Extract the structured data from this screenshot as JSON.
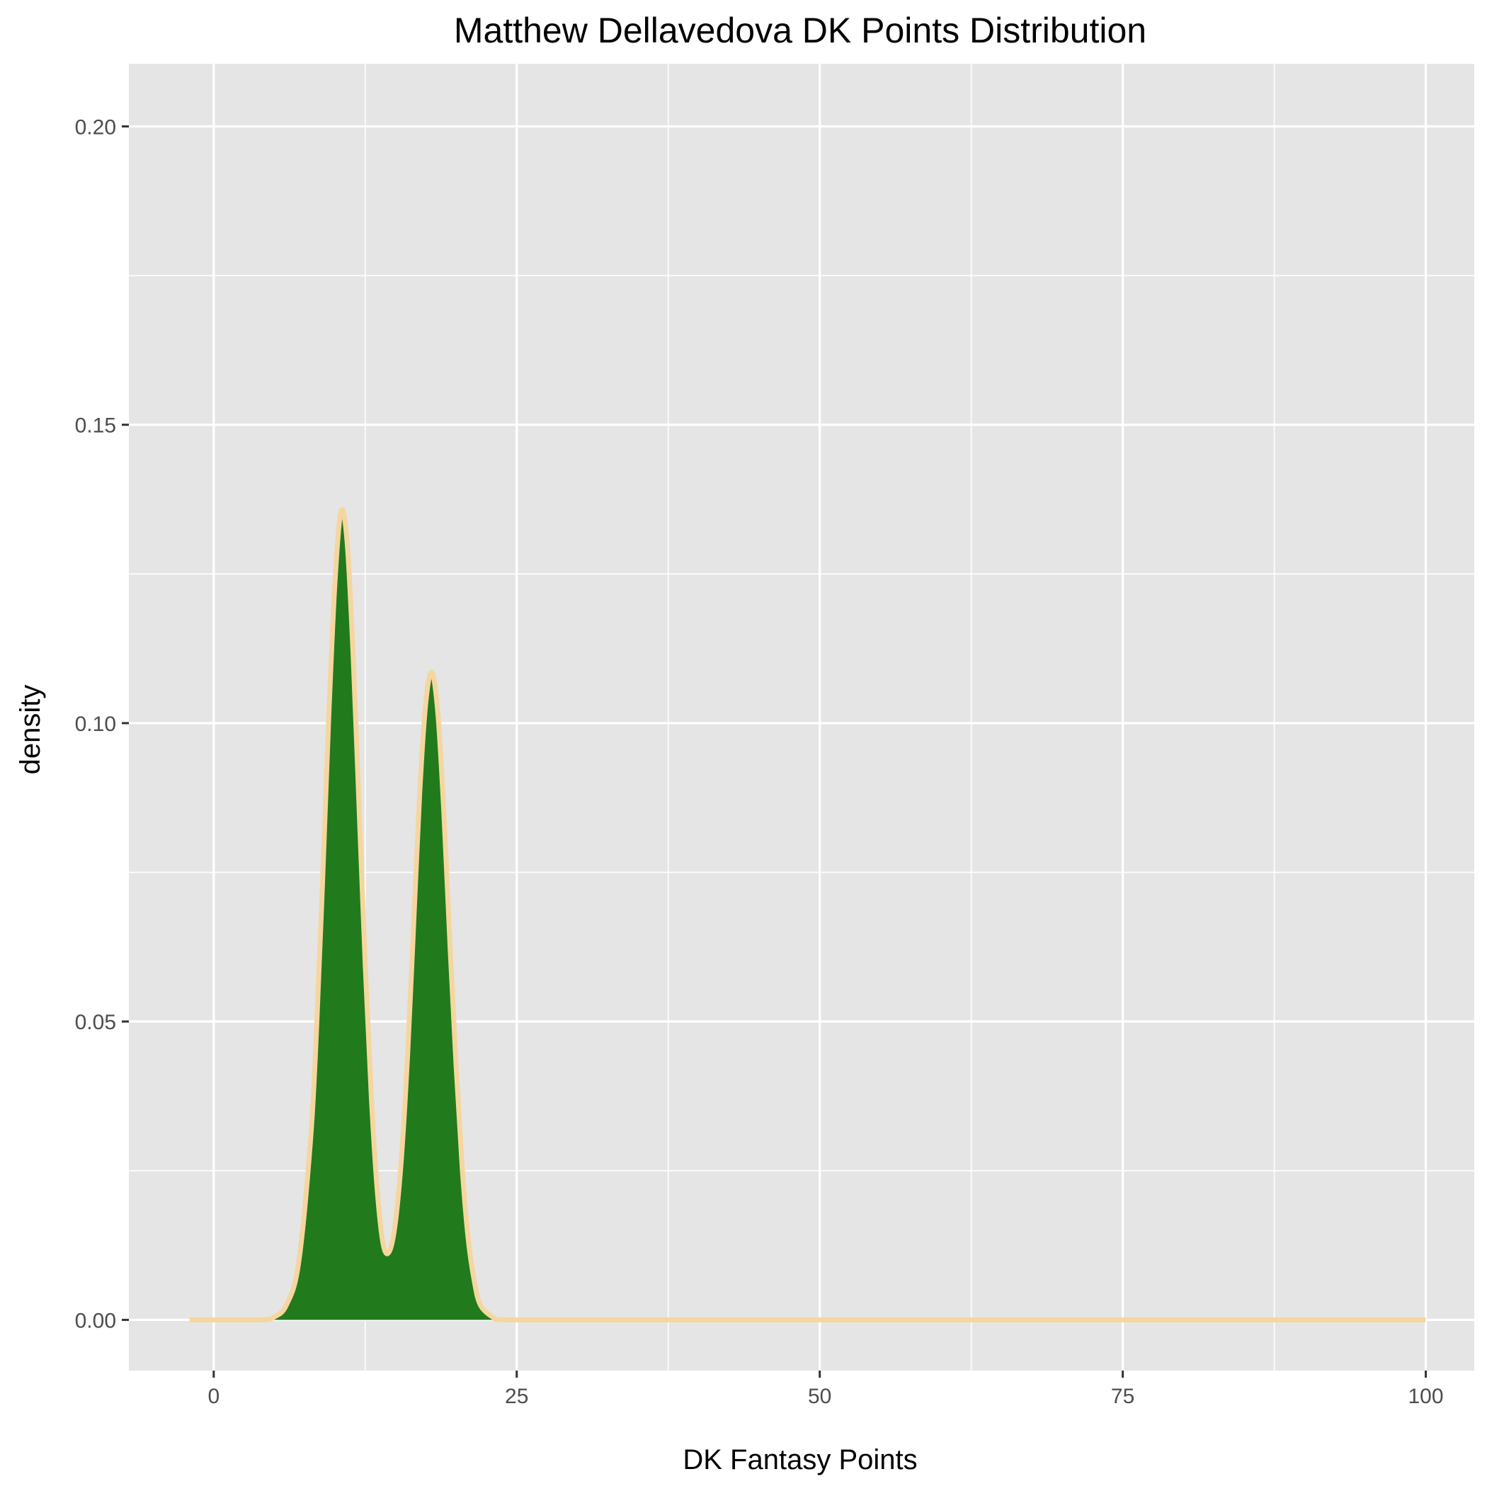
{
  "chart_data": {
    "type": "area",
    "title": "Matthew Dellavedova DK Points Distribution",
    "xlabel": "DK Fantasy Points",
    "ylabel": "density",
    "xlim": [
      -7,
      104
    ],
    "ylim": [
      -0.0085,
      0.2105
    ],
    "x_ticks": [
      0,
      25,
      50,
      75,
      100
    ],
    "x_tick_labels": [
      "0",
      "25",
      "50",
      "75",
      "100"
    ],
    "y_ticks": [
      0.0,
      0.05,
      0.1,
      0.15,
      0.2
    ],
    "y_tick_labels": [
      "0.00",
      "0.05",
      "0.10",
      "0.15",
      "0.20"
    ],
    "grid": true,
    "legend": "none",
    "colors": {
      "panel_background": "#e5e5e5",
      "grid_line": "#ffffff",
      "fill": "#217a1c",
      "outline": "#f5d6a0"
    },
    "series": [
      {
        "x": [
          -2,
          0,
          4,
          5,
          6,
          7,
          8,
          8.5,
          9,
          9.5,
          10,
          10.5,
          11,
          11.5,
          12,
          12.5,
          13,
          13.5,
          14,
          14.5,
          15,
          15.5,
          16,
          16.5,
          17,
          17.5,
          18,
          18.5,
          19,
          19.5,
          20,
          20.5,
          21,
          21.5,
          22,
          23,
          24,
          30,
          50,
          75,
          100
        ],
        "y": [
          0,
          0,
          0,
          0.0005,
          0.0025,
          0.0095,
          0.0305,
          0.0495,
          0.0745,
          0.1015,
          0.1235,
          0.1355,
          0.1305,
          0.1115,
          0.0855,
          0.0595,
          0.0375,
          0.0215,
          0.0125,
          0.0115,
          0.0165,
          0.0275,
          0.0445,
          0.0665,
          0.0885,
          0.1035,
          0.1085,
          0.1015,
          0.0845,
          0.0625,
          0.0425,
          0.0255,
          0.0135,
          0.0065,
          0.0025,
          0.0005,
          0,
          0,
          0,
          0,
          0
        ]
      }
    ]
  }
}
